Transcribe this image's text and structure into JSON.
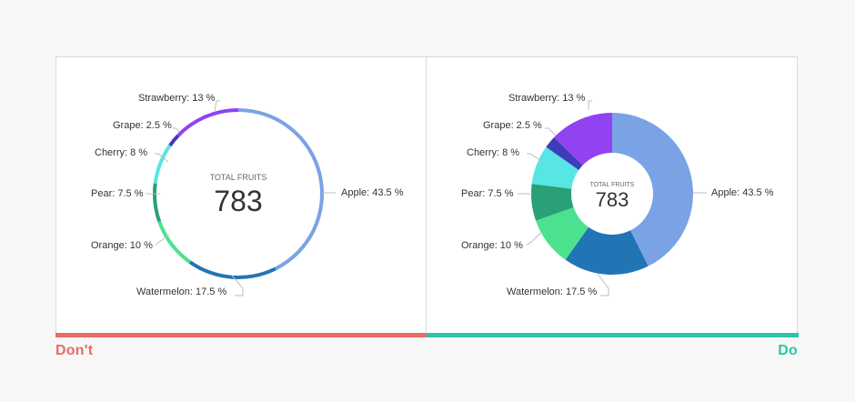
{
  "labels": {
    "dont": "Don't",
    "do": "Do"
  },
  "colors": {
    "dont": "#e96b66",
    "do": "#2ec4a7",
    "label_text": "#333333",
    "leader_line": "#bdbdbd",
    "center_label": "#666666",
    "center_value": "#333333"
  },
  "chart_data": [
    {
      "type": "pie",
      "variant": "thin-ring",
      "center_label": "TOTAL FRUITS",
      "center_value": "783",
      "slices": [
        {
          "name": "Apple",
          "value": 43.5,
          "label": "Apple: 43.5 %",
          "color": "#7aa3e5"
        },
        {
          "name": "Watermelon",
          "value": 17.5,
          "label": "Watermelon: 17.5 %",
          "color": "#2175b4"
        },
        {
          "name": "Orange",
          "value": 10,
          "label": "Orange: 10 %",
          "color": "#4ce18f"
        },
        {
          "name": "Pear",
          "value": 7.5,
          "label": "Pear: 7.5 %",
          "color": "#2aa077"
        },
        {
          "name": "Cherry",
          "value": 8,
          "label": "Cherry: 8 %",
          "color": "#58e5e5"
        },
        {
          "name": "Grape",
          "value": 2.5,
          "label": "Grape: 2.5 %",
          "color": "#3d3dba"
        },
        {
          "name": "Strawberry",
          "value": 13,
          "label": "Strawberry: 13 %",
          "color": "#9143f2"
        }
      ]
    },
    {
      "type": "pie",
      "variant": "donut",
      "center_label": "TOTAL FRUITS",
      "center_value": "783",
      "slices": [
        {
          "name": "Apple",
          "value": 43.5,
          "label": "Apple: 43.5 %",
          "color": "#7aa3e5"
        },
        {
          "name": "Watermelon",
          "value": 17.5,
          "label": "Watermelon: 17.5 %",
          "color": "#2175b4"
        },
        {
          "name": "Orange",
          "value": 10,
          "label": "Orange: 10 %",
          "color": "#4ce18f"
        },
        {
          "name": "Pear",
          "value": 7.5,
          "label": "Pear: 7.5 %",
          "color": "#2aa077"
        },
        {
          "name": "Cherry",
          "value": 8,
          "label": "Cherry: 8 %",
          "color": "#58e5e5"
        },
        {
          "name": "Grape",
          "value": 2.5,
          "label": "Grape: 2.5 %",
          "color": "#3d3dba"
        },
        {
          "name": "Strawberry",
          "value": 13,
          "label": "Strawberry: 13 %",
          "color": "#9143f2"
        }
      ]
    }
  ]
}
